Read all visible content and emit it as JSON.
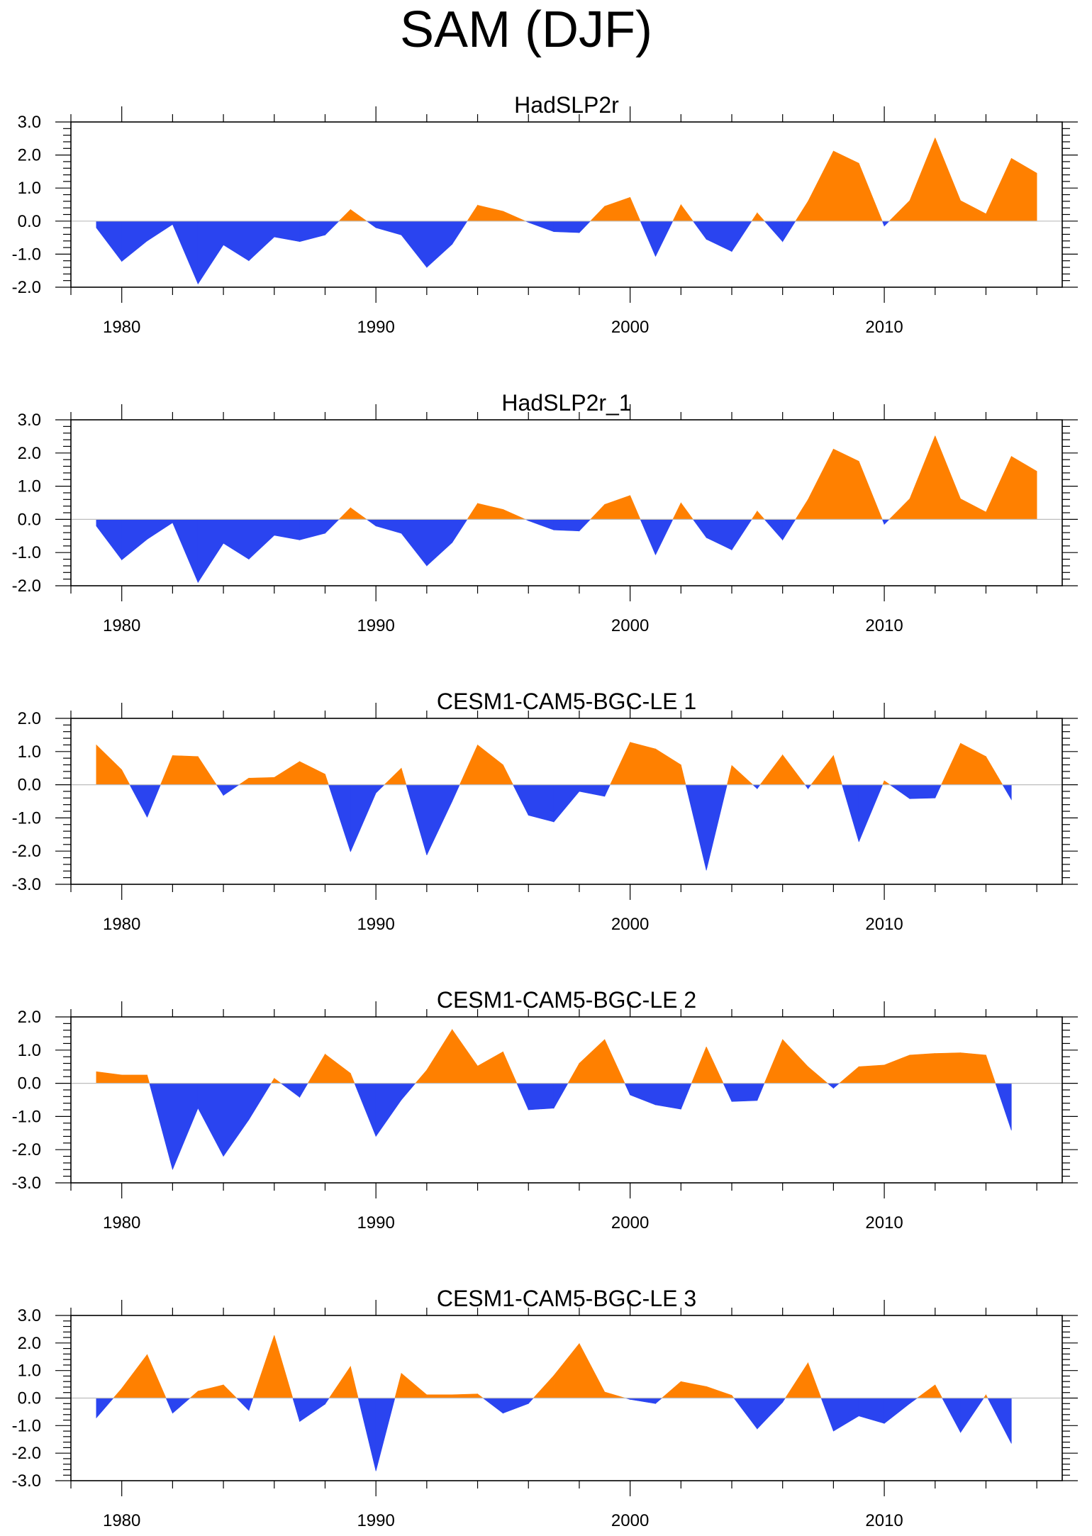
{
  "title": "SAM (DJF)",
  "colors": {
    "positive": "#ff8000",
    "negative": "#2a44f0",
    "frame": "#000000",
    "zero_line": "#bdbdbd"
  },
  "chart_data": [
    {
      "type": "area",
      "title": "HadSLP2r",
      "x_start": 1979,
      "x_end": 2016,
      "xlim": [
        1978,
        2017
      ],
      "xticks": [
        1980,
        1990,
        2000,
        2010
      ],
      "xtick_labels": [
        "1980",
        "1990",
        "2000",
        "2010"
      ],
      "ylim": [
        -2.0,
        3.0
      ],
      "yticks": [
        -2.0,
        -1.0,
        0.0,
        1.0,
        2.0,
        3.0
      ],
      "ytick_labels": [
        "-2.0",
        "-1.0",
        "0.0",
        "1.0",
        "2.0",
        "3.0"
      ],
      "values": [
        -0.2,
        -1.22,
        -0.6,
        -0.1,
        -1.9,
        -0.72,
        -1.2,
        -0.48,
        -0.62,
        -0.42,
        0.35,
        -0.2,
        -0.42,
        -1.4,
        -0.7,
        0.48,
        0.3,
        -0.04,
        -0.32,
        -0.35,
        0.45,
        0.72,
        -1.07,
        0.5,
        -0.55,
        -0.92,
        0.25,
        -0.62,
        0.6,
        2.12,
        1.75,
        -0.15,
        0.62,
        2.52,
        0.62,
        0.22,
        1.9,
        1.45
      ]
    },
    {
      "type": "area",
      "title": "HadSLP2r_1",
      "x_start": 1979,
      "x_end": 2016,
      "xlim": [
        1978,
        2017
      ],
      "xticks": [
        1980,
        1990,
        2000,
        2010
      ],
      "xtick_labels": [
        "1980",
        "1990",
        "2000",
        "2010"
      ],
      "ylim": [
        -2.0,
        3.0
      ],
      "yticks": [
        -2.0,
        -1.0,
        0.0,
        1.0,
        2.0,
        3.0
      ],
      "ytick_labels": [
        "-2.0",
        "-1.0",
        "0.0",
        "1.0",
        "2.0",
        "3.0"
      ],
      "values": [
        -0.2,
        -1.22,
        -0.6,
        -0.1,
        -1.9,
        -0.72,
        -1.2,
        -0.48,
        -0.62,
        -0.42,
        0.35,
        -0.2,
        -0.42,
        -1.4,
        -0.7,
        0.48,
        0.3,
        -0.04,
        -0.32,
        -0.35,
        0.45,
        0.72,
        -1.07,
        0.5,
        -0.55,
        -0.92,
        0.25,
        -0.62,
        0.6,
        2.12,
        1.75,
        -0.15,
        0.62,
        2.52,
        0.62,
        0.22,
        1.9,
        1.45
      ]
    },
    {
      "type": "area",
      "title": "CESM1-CAM5-BGC-LE 1",
      "x_start": 1979,
      "x_end": 2015,
      "xlim": [
        1978,
        2017
      ],
      "xticks": [
        1980,
        1990,
        2000,
        2010
      ],
      "xtick_labels": [
        "1980",
        "1990",
        "2000",
        "2010"
      ],
      "ylim": [
        -3.0,
        2.0
      ],
      "yticks": [
        -3.0,
        -2.0,
        -1.0,
        0.0,
        1.0,
        2.0
      ],
      "ytick_labels": [
        "-3.0",
        "-2.0",
        "-1.0",
        "0.0",
        "1.0",
        "2.0"
      ],
      "values": [
        1.2,
        0.45,
        -0.98,
        0.88,
        0.85,
        -0.32,
        0.2,
        0.22,
        0.7,
        0.32,
        -2.02,
        -0.25,
        0.5,
        -2.12,
        -0.5,
        1.2,
        0.6,
        -0.92,
        -1.12,
        -0.2,
        -0.35,
        1.28,
        1.08,
        0.6,
        -2.58,
        0.58,
        -0.12,
        0.9,
        -0.12,
        0.88,
        -1.72,
        0.12,
        -0.42,
        -0.4,
        1.25,
        0.85,
        -0.45
      ]
    },
    {
      "type": "area",
      "title": "CESM1-CAM5-BGC-LE 2",
      "x_start": 1979,
      "x_end": 2015,
      "xlim": [
        1978,
        2017
      ],
      "xticks": [
        1980,
        1990,
        2000,
        2010
      ],
      "xtick_labels": [
        "1980",
        "1990",
        "2000",
        "2010"
      ],
      "ylim": [
        -3.0,
        2.0
      ],
      "yticks": [
        -3.0,
        -2.0,
        -1.0,
        0.0,
        1.0,
        2.0
      ],
      "ytick_labels": [
        "-3.0",
        "-2.0",
        "-1.0",
        "0.0",
        "1.0",
        "2.0"
      ],
      "values": [
        0.35,
        0.25,
        0.25,
        -2.6,
        -0.75,
        -2.2,
        -1.1,
        0.15,
        -0.42,
        0.88,
        0.3,
        -1.6,
        -0.5,
        0.4,
        1.62,
        0.52,
        0.95,
        -0.8,
        -0.75,
        0.6,
        1.32,
        -0.35,
        -0.65,
        -0.78,
        1.1,
        -0.55,
        -0.52,
        1.32,
        0.5,
        -0.15,
        0.5,
        0.55,
        0.85,
        0.9,
        0.92,
        0.85,
        -1.42
      ]
    },
    {
      "type": "area",
      "title": "CESM1-CAM5-BGC-LE 3",
      "x_start": 1979,
      "x_end": 2015,
      "xlim": [
        1978,
        2017
      ],
      "xticks": [
        1980,
        1990,
        2000,
        2010
      ],
      "xtick_labels": [
        "1980",
        "1990",
        "2000",
        "2010"
      ],
      "ylim": [
        -3.0,
        3.0
      ],
      "yticks": [
        -3.0,
        -2.0,
        -1.0,
        0.0,
        1.0,
        2.0,
        3.0
      ],
      "ytick_labels": [
        "-3.0",
        "-2.0",
        "-1.0",
        "0.0",
        "1.0",
        "2.0",
        "3.0"
      ],
      "values": [
        -0.72,
        0.35,
        1.58,
        -0.55,
        0.25,
        0.48,
        -0.45,
        2.28,
        -0.85,
        -0.22,
        1.15,
        -2.65,
        0.9,
        0.12,
        0.12,
        0.15,
        -0.55,
        -0.2,
        0.82,
        1.98,
        0.22,
        -0.05,
        -0.2,
        0.6,
        0.42,
        0.1,
        -1.12,
        -0.15,
        1.28,
        -1.2,
        -0.65,
        -0.92,
        -0.2,
        0.48,
        -1.25,
        0.12,
        -1.65
      ]
    }
  ]
}
